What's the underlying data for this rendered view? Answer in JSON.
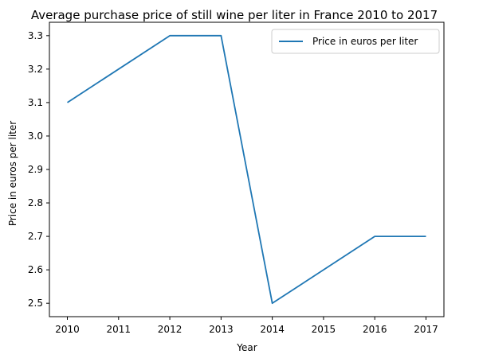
{
  "chart_data": {
    "type": "line",
    "title": "Average purchase price of still wine per liter in France 2010 to 2017",
    "xlabel": "Year",
    "ylabel": "Price in euros per liter",
    "x": [
      2010,
      2012,
      2013,
      2014,
      2016,
      2017
    ],
    "series": [
      {
        "name": "Price in euros per liter",
        "color": "#1f77b4",
        "values": [
          3.1,
          3.3,
          3.3,
          2.5,
          2.7,
          2.7
        ]
      }
    ],
    "xticks": [
      "2010",
      "2011",
      "2012",
      "2013",
      "2014",
      "2015",
      "2016",
      "2017"
    ],
    "yticks": [
      "2.5",
      "2.6",
      "2.7",
      "2.8",
      "2.9",
      "3.0",
      "3.1",
      "3.2",
      "3.3"
    ],
    "xlim": [
      2009.65,
      2017.35
    ],
    "ylim": [
      2.46,
      3.34
    ],
    "grid": false,
    "legend_position": "top-right"
  }
}
